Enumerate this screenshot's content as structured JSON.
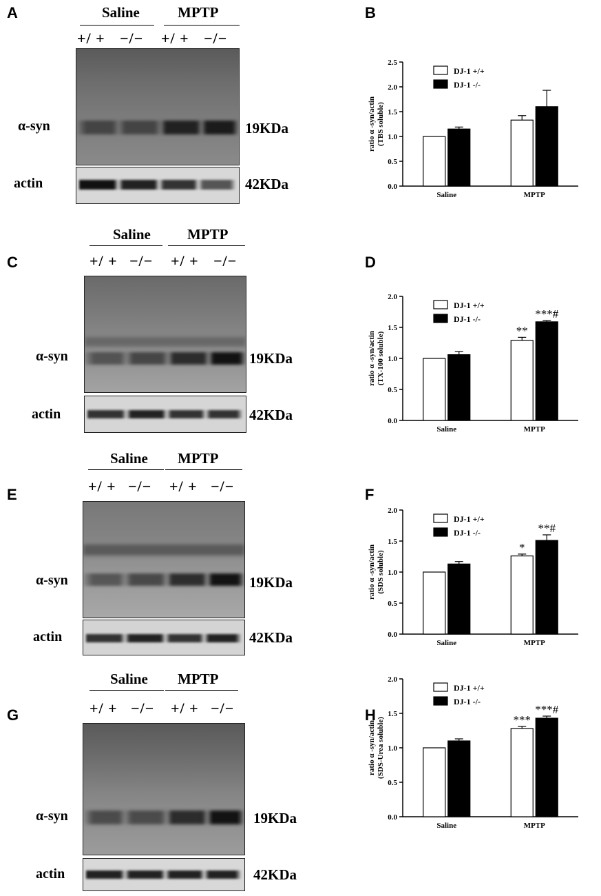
{
  "figure": {
    "row_labels": {
      "target": "α-syn",
      "control": "actin"
    },
    "mw": {
      "target": "19KDa",
      "control": "42KDa"
    },
    "groups": [
      "Saline",
      "MPTP"
    ],
    "genotypes": [
      "+/ +",
      "−/−",
      "+/ +",
      "−/−"
    ],
    "legend": [
      "DJ-1 +/+",
      "DJ-1 -/-"
    ],
    "colors": {
      "wt": "#ffffff",
      "ko": "#000000"
    }
  },
  "panels": {
    "A": {
      "letter": "A"
    },
    "B": {
      "letter": "B"
    },
    "C": {
      "letter": "C"
    },
    "D": {
      "letter": "D"
    },
    "E": {
      "letter": "E"
    },
    "F": {
      "letter": "F"
    },
    "G": {
      "letter": "G"
    },
    "H": {
      "letter": "H"
    }
  },
  "chart_data": [
    {
      "type": "bar",
      "panel": "B",
      "categories": [
        "Saline",
        "MPTP"
      ],
      "ylabel": "ratio α -syn/actin (TBS soluble)",
      "ylim": [
        0,
        2.5
      ],
      "yticks": [
        "0.0",
        "0.5",
        "1.0",
        "1.5",
        "2.0",
        "2.5"
      ],
      "series": [
        {
          "name": "DJ-1 +/+",
          "values": [
            1.0,
            1.33
          ],
          "errors": [
            0,
            0.09
          ]
        },
        {
          "name": "DJ-1 -/-",
          "values": [
            1.15,
            1.6
          ],
          "errors": [
            0.04,
            0.33
          ]
        }
      ],
      "annotations": [
        [
          "",
          ""
        ],
        [
          "",
          ""
        ]
      ]
    },
    {
      "type": "bar",
      "panel": "D",
      "categories": [
        "Saline",
        "MPTP"
      ],
      "ylabel": "ratio α -syn/actin (TX-100 soluble)",
      "ylim": [
        0,
        2.0
      ],
      "yticks": [
        "0.0",
        "0.5",
        "1.0",
        "1.5",
        "2.0"
      ],
      "series": [
        {
          "name": "DJ-1 +/+",
          "values": [
            1.0,
            1.29
          ],
          "errors": [
            0,
            0.05
          ]
        },
        {
          "name": "DJ-1 -/-",
          "values": [
            1.06,
            1.59
          ],
          "errors": [
            0.05,
            0.02
          ]
        }
      ],
      "annotations": [
        [
          "",
          "**"
        ],
        [
          "",
          "***#"
        ]
      ]
    },
    {
      "type": "bar",
      "panel": "F",
      "categories": [
        "Saline",
        "MPTP"
      ],
      "ylabel": "ratio α -syn/actin (SDS soluble)",
      "ylim": [
        0,
        2.0
      ],
      "yticks": [
        "0.0",
        "0.5",
        "1.0",
        "1.5",
        "2.0"
      ],
      "series": [
        {
          "name": "DJ-1 +/+",
          "values": [
            1.0,
            1.26
          ],
          "errors": [
            0,
            0.03
          ]
        },
        {
          "name": "DJ-1 -/-",
          "values": [
            1.13,
            1.51
          ],
          "errors": [
            0.04,
            0.09
          ]
        }
      ],
      "annotations": [
        [
          "",
          "*"
        ],
        [
          "",
          "**#"
        ]
      ]
    },
    {
      "type": "bar",
      "panel": "H",
      "categories": [
        "Saline",
        "MPTP"
      ],
      "ylabel": "ratio α -syn/actin (SDS-Urea soluble)",
      "ylim": [
        0,
        2.0
      ],
      "yticks": [
        "0.0",
        "0.5",
        "1.0",
        "1.5",
        "2.0"
      ],
      "series": [
        {
          "name": "DJ-1 +/+",
          "values": [
            1.0,
            1.28
          ],
          "errors": [
            0,
            0.03
          ]
        },
        {
          "name": "DJ-1 -/-",
          "values": [
            1.1,
            1.43
          ],
          "errors": [
            0.03,
            0.03
          ]
        }
      ],
      "annotations": [
        [
          "",
          "***"
        ],
        [
          "",
          "***#"
        ]
      ]
    }
  ]
}
